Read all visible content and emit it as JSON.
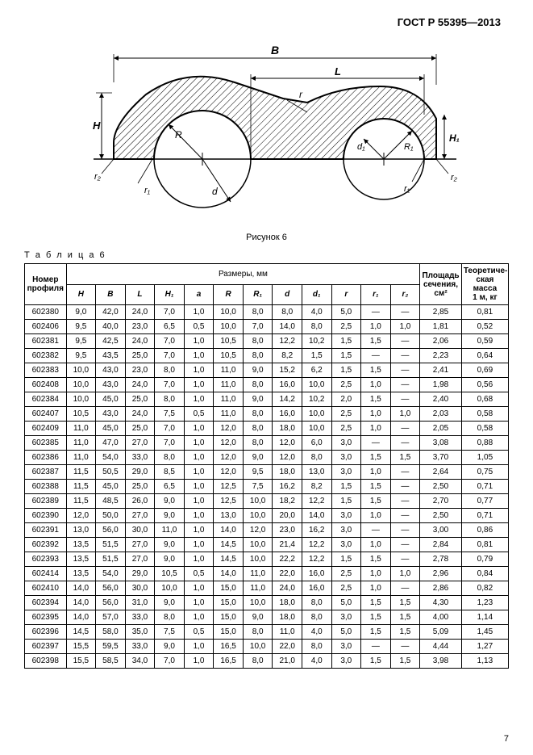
{
  "header": "ГОСТ Р 55395—2013",
  "figure_caption": "Рисунок 6",
  "table_label": "Т а б л и ц а  6",
  "page_number": "7",
  "table": {
    "top_headers": {
      "profile": "Номер\nпрофиля",
      "dims_group": "Размеры, мм",
      "area": "Площадь\nсечения,\nсм²",
      "mass": "Теоретиче-\nская масса\n1 м, кг"
    },
    "dim_cols": [
      "H",
      "B",
      "L",
      "H₁",
      "a",
      "R",
      "R₁",
      "d",
      "d₁",
      "r",
      "r₁",
      "r₂"
    ],
    "rows": [
      [
        "602380",
        "9,0",
        "42,0",
        "24,0",
        "7,0",
        "1,0",
        "10,0",
        "8,0",
        "8,0",
        "4,0",
        "5,0",
        "—",
        "—",
        "2,85",
        "0,81"
      ],
      [
        "602406",
        "9,5",
        "40,0",
        "23,0",
        "6,5",
        "0,5",
        "10,0",
        "7,0",
        "14,0",
        "8,0",
        "2,5",
        "1,0",
        "1,0",
        "1,81",
        "0,52"
      ],
      [
        "602381",
        "9,5",
        "42,5",
        "24,0",
        "7,0",
        "1,0",
        "10,5",
        "8,0",
        "12,2",
        "10,2",
        "1,5",
        "1,5",
        "—",
        "2,06",
        "0,59"
      ],
      [
        "602382",
        "9,5",
        "43,5",
        "25,0",
        "7,0",
        "1,0",
        "10,5",
        "8,0",
        "8,2",
        "1,5",
        "1,5",
        "—",
        "—",
        "2,23",
        "0,64"
      ],
      [
        "602383",
        "10,0",
        "43,0",
        "23,0",
        "8,0",
        "1,0",
        "11,0",
        "9,0",
        "15,2",
        "6,2",
        "1,5",
        "1,5",
        "—",
        "2,41",
        "0,69"
      ],
      [
        "602408",
        "10,0",
        "43,0",
        "24,0",
        "7,0",
        "1,0",
        "11,0",
        "8,0",
        "16,0",
        "10,0",
        "2,5",
        "1,0",
        "—",
        "1,98",
        "0,56"
      ],
      [
        "602384",
        "10,0",
        "45,0",
        "25,0",
        "8,0",
        "1,0",
        "11,0",
        "9,0",
        "14,2",
        "10,2",
        "2,0",
        "1,5",
        "—",
        "2,40",
        "0,68"
      ],
      [
        "602407",
        "10,5",
        "43,0",
        "24,0",
        "7,5",
        "0,5",
        "11,0",
        "8,0",
        "16,0",
        "10,0",
        "2,5",
        "1,0",
        "1,0",
        "2,03",
        "0,58"
      ],
      [
        "602409",
        "11,0",
        "45,0",
        "25,0",
        "7,0",
        "1,0",
        "12,0",
        "8,0",
        "18,0",
        "10,0",
        "2,5",
        "1,0",
        "—",
        "2,05",
        "0,58"
      ],
      [
        "602385",
        "11,0",
        "47,0",
        "27,0",
        "7,0",
        "1,0",
        "12,0",
        "8,0",
        "12,0",
        "6,0",
        "3,0",
        "—",
        "—",
        "3,08",
        "0,88"
      ],
      [
        "602386",
        "11,0",
        "54,0",
        "33,0",
        "8,0",
        "1,0",
        "12,0",
        "9,0",
        "12,0",
        "8,0",
        "3,0",
        "1,5",
        "1,5",
        "3,70",
        "1,05"
      ],
      [
        "602387",
        "11,5",
        "50,5",
        "29,0",
        "8,5",
        "1,0",
        "12,0",
        "9,5",
        "18,0",
        "13,0",
        "3,0",
        "1,0",
        "—",
        "2,64",
        "0,75"
      ],
      [
        "602388",
        "11,5",
        "45,0",
        "25,0",
        "6,5",
        "1,0",
        "12,5",
        "7,5",
        "16,2",
        "8,2",
        "1,5",
        "1,5",
        "—",
        "2,50",
        "0,71"
      ],
      [
        "602389",
        "11,5",
        "48,5",
        "26,0",
        "9,0",
        "1,0",
        "12,5",
        "10,0",
        "18,2",
        "12,2",
        "1,5",
        "1,5",
        "—",
        "2,70",
        "0,77"
      ],
      [
        "602390",
        "12,0",
        "50,0",
        "27,0",
        "9,0",
        "1,0",
        "13,0",
        "10,0",
        "20,0",
        "14,0",
        "3,0",
        "1,0",
        "—",
        "2,50",
        "0,71"
      ],
      [
        "602391",
        "13,0",
        "56,0",
        "30,0",
        "11,0",
        "1,0",
        "14,0",
        "12,0",
        "23,0",
        "16,2",
        "3,0",
        "—",
        "—",
        "3,00",
        "0,86"
      ],
      [
        "602392",
        "13,5",
        "51,5",
        "27,0",
        "9,0",
        "1,0",
        "14,5",
        "10,0",
        "21,4",
        "12,2",
        "3,0",
        "1,0",
        "—",
        "2,84",
        "0,81"
      ],
      [
        "602393",
        "13,5",
        "51,5",
        "27,0",
        "9,0",
        "1,0",
        "14,5",
        "10,0",
        "22,2",
        "12,2",
        "1,5",
        "1,5",
        "—",
        "2,78",
        "0,79"
      ],
      [
        "602414",
        "13,5",
        "54,0",
        "29,0",
        "10,5",
        "0,5",
        "14,0",
        "11,0",
        "22,0",
        "16,0",
        "2,5",
        "1,0",
        "1,0",
        "2,96",
        "0,84"
      ],
      [
        "602410",
        "14,0",
        "56,0",
        "30,0",
        "10,0",
        "1,0",
        "15,0",
        "11,0",
        "24,0",
        "16,0",
        "2,5",
        "1,0",
        "—",
        "2,86",
        "0,82"
      ],
      [
        "602394",
        "14,0",
        "56,0",
        "31,0",
        "9,0",
        "1,0",
        "15,0",
        "10,0",
        "18,0",
        "8,0",
        "5,0",
        "1,5",
        "1,5",
        "4,30",
        "1,23"
      ],
      [
        "602395",
        "14,0",
        "57,0",
        "33,0",
        "8,0",
        "1,0",
        "15,0",
        "9,0",
        "18,0",
        "8,0",
        "3,0",
        "1,5",
        "1,5",
        "4,00",
        "1,14"
      ],
      [
        "602396",
        "14,5",
        "58,0",
        "35,0",
        "7,5",
        "0,5",
        "15,0",
        "8,0",
        "11,0",
        "4,0",
        "5,0",
        "1,5",
        "1,5",
        "5,09",
        "1,45"
      ],
      [
        "602397",
        "15,5",
        "59,5",
        "33,0",
        "9,0",
        "1,0",
        "16,5",
        "10,0",
        "22,0",
        "8,0",
        "3,0",
        "—",
        "—",
        "4,44",
        "1,27"
      ],
      [
        "602398",
        "15,5",
        "58,5",
        "34,0",
        "7,0",
        "1,0",
        "16,5",
        "8,0",
        "21,0",
        "4,0",
        "3,0",
        "1,5",
        "1,5",
        "3,98",
        "1,13"
      ]
    ]
  },
  "figure": {
    "stroke": "#000000",
    "hatch": "#000000",
    "labels": [
      "B",
      "L",
      "r",
      "H",
      "H₁",
      "r₂",
      "r₁",
      "d",
      "R",
      "R₁",
      "d₁",
      "r₁",
      "r₂"
    ]
  }
}
